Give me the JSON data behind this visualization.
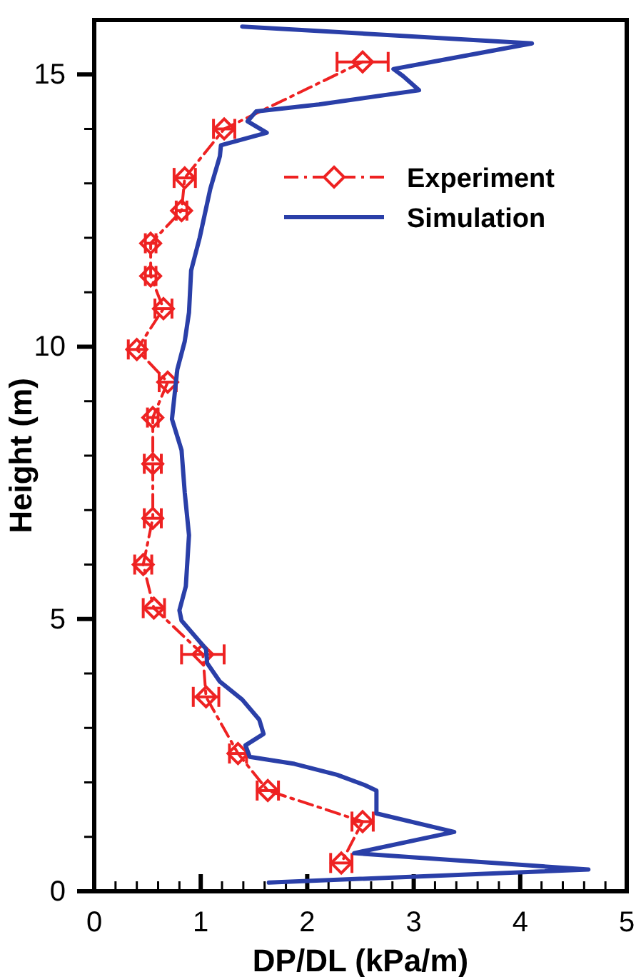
{
  "chart_data": {
    "type": "line",
    "xlabel": "DP/DL (kPa/m)",
    "ylabel": "Height (m)",
    "xlim": [
      0,
      5
    ],
    "ylim": [
      0,
      16
    ],
    "xticks": [
      0,
      {
        "value": 0.2,
        "label": null
      },
      {
        "value": 0.4,
        "label": null
      },
      {
        "value": 0.6,
        "label": null
      },
      {
        "value": 0.8,
        "label": null
      },
      1,
      {
        "value": 1.2,
        "label": null
      },
      {
        "value": 1.4,
        "label": null
      },
      {
        "value": 1.6,
        "label": null
      },
      {
        "value": 1.8,
        "label": null
      },
      2,
      {
        "value": 2.2,
        "label": null
      },
      {
        "value": 2.4,
        "label": null
      },
      {
        "value": 2.6,
        "label": null
      },
      {
        "value": 2.8,
        "label": null
      },
      3,
      {
        "value": 3.2,
        "label": null
      },
      {
        "value": 3.4,
        "label": null
      },
      {
        "value": 3.6,
        "label": null
      },
      {
        "value": 3.8,
        "label": null
      },
      4,
      {
        "value": 4.2,
        "label": null
      },
      {
        "value": 4.4,
        "label": null
      },
      {
        "value": 4.6,
        "label": null
      },
      {
        "value": 4.8,
        "label": null
      },
      5
    ],
    "yticks": [
      0,
      {
        "value": 1,
        "label": null
      },
      {
        "value": 2,
        "label": null
      },
      {
        "value": 3,
        "label": null
      },
      {
        "value": 4,
        "label": null
      },
      5,
      {
        "value": 6,
        "label": null
      },
      {
        "value": 7,
        "label": null
      },
      {
        "value": 8,
        "label": null
      },
      {
        "value": 9,
        "label": null
      },
      10,
      {
        "value": 11,
        "label": null
      },
      {
        "value": 12,
        "label": null
      },
      {
        "value": 13,
        "label": null
      },
      {
        "value": 14,
        "label": null
      },
      15
    ],
    "grid": false,
    "legend": "top right",
    "series": [
      {
        "name": "Experiment",
        "color": "#ee2222",
        "marker": "diamond",
        "line_style": "dashed",
        "x": [
          2.52,
          1.22,
          0.85,
          0.82,
          0.53,
          0.53,
          0.65,
          0.4,
          0.69,
          0.55,
          0.55,
          0.55,
          0.46,
          0.56,
          1.02,
          1.05,
          1.35,
          1.63,
          2.52,
          2.32
        ],
        "values": [
          15.23,
          14.0,
          13.1,
          12.5,
          11.9,
          11.3,
          10.7,
          9.95,
          9.35,
          8.7,
          7.85,
          6.85,
          6.0,
          5.2,
          4.35,
          3.57,
          2.53,
          1.85,
          1.28,
          0.52
        ],
        "xerrors": [
          0.24,
          0.1,
          0.1,
          0.05,
          0.05,
          0.05,
          0.08,
          0.08,
          0.08,
          0.05,
          0.08,
          0.08,
          0.08,
          0.1,
          0.2,
          0.12,
          0.08,
          0.1,
          0.1,
          0.1
        ]
      },
      {
        "name": "Simulation",
        "color": "#2a3fa8",
        "marker": "none",
        "line_style": "solid",
        "x": [
          1.64,
          4.64,
          2.44,
          3.38,
          2.65,
          2.65,
          2.54,
          2.28,
          1.88,
          1.46,
          1.42,
          1.59,
          1.55,
          1.39,
          1.18,
          1.06,
          1.05,
          0.82,
          0.8,
          0.86,
          0.89,
          0.85,
          0.82,
          0.73,
          0.78,
          0.85,
          0.89,
          0.91,
          0.99,
          1.09,
          1.18,
          1.19,
          1.62,
          1.44,
          1.52,
          2.11,
          3.05,
          2.9,
          2.81,
          3.25,
          4.11,
          1.39
        ],
        "values": [
          0.16,
          0.4,
          0.7,
          1.09,
          1.43,
          1.85,
          1.95,
          2.14,
          2.34,
          2.47,
          2.68,
          2.89,
          3.15,
          3.52,
          3.85,
          4.19,
          4.45,
          4.97,
          5.16,
          5.6,
          6.54,
          7.32,
          8.1,
          8.67,
          9.58,
          10.1,
          10.63,
          11.4,
          12.0,
          12.9,
          13.5,
          13.7,
          13.93,
          14.14,
          14.32,
          14.45,
          14.71,
          14.97,
          15.1,
          15.26,
          15.57,
          15.88
        ]
      }
    ]
  }
}
